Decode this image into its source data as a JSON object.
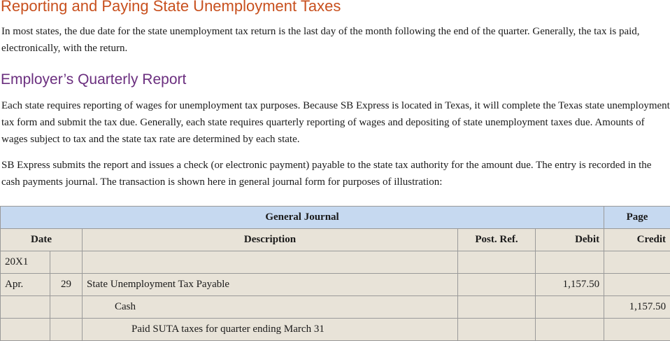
{
  "heading1": "Reporting and Paying State Unemployment Taxes",
  "para1": "In most states, the due date for the state unemployment tax return is the last day of the month following the end of the quarter. Generally, the tax is paid, electronically, with the return.",
  "heading2": "Employer’s Quarterly Report",
  "para2": "Each state requires reporting of wages for unemployment tax purposes. Because SB Express is located in Texas, it will complete the Texas state unemployment tax form and submit the tax due. Generally, each state requires quarterly reporting of wages and depositing of state unemployment taxes due. Amounts of wages subject to tax and the state tax rate are determined by each state.",
  "para3": "SB Express submits the report and issues a check (or electronic payment) payable to the state tax authority for the amount due. The entry is recorded in the cash payments journal. The transaction is shown here in general journal form for purposes of illustration:",
  "journal": {
    "title": "General Journal",
    "page_label": "Page",
    "headers": {
      "date": "Date",
      "description": "Description",
      "post_ref": "Post. Ref.",
      "debit": "Debit",
      "credit": "Credit"
    },
    "rows": [
      {
        "month": "20X1",
        "day": "",
        "description": "",
        "post_ref": "",
        "debit": "",
        "credit": ""
      },
      {
        "month": "Apr.",
        "day": "29",
        "description": "State Unemployment Tax Payable",
        "post_ref": "",
        "debit": "1,157.50",
        "credit": ""
      },
      {
        "month": "",
        "day": "",
        "description": "Cash",
        "post_ref": "",
        "debit": "",
        "credit": "1,157.50"
      },
      {
        "month": "",
        "day": "",
        "description": "Paid SUTA taxes for quarter ending March 31",
        "post_ref": "",
        "debit": "",
        "credit": ""
      }
    ]
  }
}
